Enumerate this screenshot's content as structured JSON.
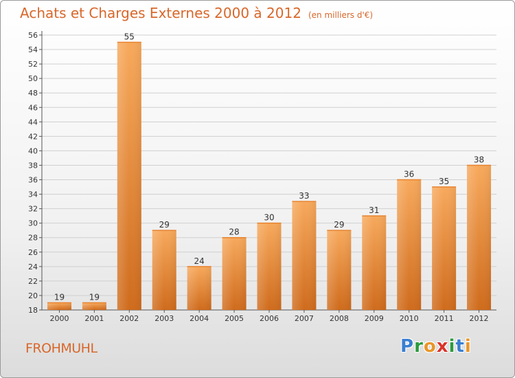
{
  "header": {
    "title": "Achats et Charges Externes 2000 à 2012",
    "unit": "(en milliers d'€)"
  },
  "footer": {
    "town": "FROHMUHL",
    "logo": {
      "letters": [
        "P",
        "r",
        "o",
        "x",
        "i",
        "t",
        "i"
      ],
      "colors": [
        "#3a7fd0",
        "#2c9a3e",
        "#e8962a",
        "#d9342b",
        "#2c9a3e",
        "#3a7fd0",
        "#e8962a"
      ]
    }
  },
  "colors": {
    "accent": "#d8672a",
    "bar_light": "#f7a95c",
    "bar_dark": "#d06f1f",
    "grid": "#cfcfcf"
  },
  "chart_data": {
    "type": "bar",
    "title": "Achats et Charges Externes 2000 à 2012",
    "categories": [
      "2000",
      "2001",
      "2002",
      "2003",
      "2004",
      "2005",
      "2006",
      "2007",
      "2008",
      "2009",
      "2010",
      "2011",
      "2012"
    ],
    "values": [
      19,
      19,
      55,
      29,
      24,
      28,
      30,
      33,
      29,
      31,
      36,
      35,
      38
    ],
    "ylim": [
      18,
      56
    ],
    "yticks": [
      18,
      20,
      22,
      24,
      26,
      28,
      30,
      32,
      34,
      36,
      38,
      40,
      42,
      44,
      46,
      48,
      50,
      52,
      54,
      56
    ],
    "grid": true,
    "legend": "none"
  }
}
